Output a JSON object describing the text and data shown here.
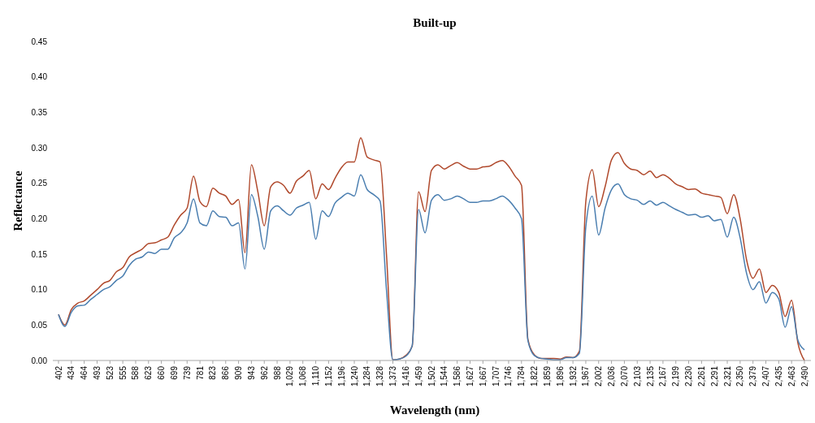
{
  "chart_data": {
    "type": "line",
    "title": "Built-up",
    "xlabel": "Wavelength (nm)",
    "ylabel": "Reflectance",
    "categories": [
      "402",
      null,
      "434",
      null,
      "464",
      null,
      "493",
      null,
      "523",
      null,
      "555",
      null,
      "588",
      null,
      "623",
      null,
      "660",
      null,
      "699",
      null,
      "739",
      null,
      "781",
      null,
      "823",
      null,
      "866",
      null,
      "909",
      null,
      "943",
      null,
      "962",
      null,
      "988",
      null,
      "1,029",
      null,
      "1,068",
      null,
      "1,110",
      null,
      "1,152",
      null,
      "1,196",
      null,
      "1,240",
      null,
      "1,284",
      null,
      "1,328",
      null,
      "1,373",
      null,
      "1,416",
      null,
      "1,459",
      null,
      "1,502",
      null,
      "1,544",
      null,
      "1,586",
      null,
      "1,627",
      null,
      "1,667",
      null,
      "1,707",
      null,
      "1,746",
      null,
      "1,784",
      null,
      "1,822",
      null,
      "1,859",
      null,
      "1,896",
      null,
      "1,932",
      null,
      "1,967",
      null,
      "2,002",
      null,
      "2,036",
      null,
      "2,070",
      null,
      "2,103",
      null,
      "2,135",
      null,
      "2,167",
      null,
      "2,199",
      null,
      "2,230",
      null,
      "2,261",
      null,
      "2,291",
      null,
      "2,321",
      null,
      "2,350",
      null,
      "2,379",
      null,
      "2,407",
      null,
      "2,435",
      null,
      "2,463",
      null,
      "2,490"
    ],
    "series": [
      {
        "color": "#b0492c",
        "values": [
          0.065,
          0.05,
          0.072,
          0.081,
          0.084,
          0.092,
          0.1,
          0.109,
          0.113,
          0.125,
          0.131,
          0.146,
          0.152,
          0.157,
          0.165,
          0.166,
          0.17,
          0.174,
          0.191,
          0.205,
          0.215,
          0.26,
          0.224,
          0.217,
          0.243,
          0.236,
          0.232,
          0.22,
          0.227,
          0.152,
          0.276,
          0.238,
          0.19,
          0.245,
          0.252,
          0.247,
          0.236,
          0.253,
          0.26,
          0.268,
          0.228,
          0.249,
          0.241,
          0.257,
          0.272,
          0.28,
          0.28,
          0.314,
          0.287,
          0.283,
          0.28,
          0.15,
          0.001,
          0.002,
          0.007,
          0.02,
          0.238,
          0.21,
          0.268,
          0.276,
          0.27,
          0.275,
          0.279,
          0.274,
          0.27,
          0.27,
          0.273,
          0.274,
          0.279,
          0.282,
          0.274,
          0.26,
          0.247,
          0.03,
          0.008,
          0.003,
          0.003,
          0.003,
          0.002,
          0.005,
          0.004,
          0.013,
          0.224,
          0.269,
          0.217,
          0.245,
          0.283,
          0.293,
          0.278,
          0.27,
          0.268,
          0.262,
          0.267,
          0.258,
          0.262,
          0.257,
          0.249,
          0.245,
          0.241,
          0.242,
          0.236,
          0.234,
          0.232,
          0.23,
          0.207,
          0.234,
          0.2,
          0.142,
          0.116,
          0.129,
          0.096,
          0.106,
          0.096,
          0.062,
          0.085,
          0.024,
          0.0
        ]
      },
      {
        "color": "#4a7eb0",
        "values": [
          0.065,
          0.048,
          0.068,
          0.077,
          0.078,
          0.086,
          0.093,
          0.1,
          0.104,
          0.113,
          0.119,
          0.134,
          0.143,
          0.146,
          0.153,
          0.151,
          0.157,
          0.157,
          0.173,
          0.18,
          0.194,
          0.228,
          0.194,
          0.19,
          0.211,
          0.203,
          0.202,
          0.19,
          0.194,
          0.129,
          0.234,
          0.203,
          0.157,
          0.211,
          0.218,
          0.211,
          0.205,
          0.215,
          0.219,
          0.223,
          0.171,
          0.211,
          0.203,
          0.222,
          0.23,
          0.236,
          0.232,
          0.262,
          0.241,
          0.234,
          0.225,
          0.1,
          0.001,
          0.002,
          0.006,
          0.021,
          0.213,
          0.18,
          0.226,
          0.234,
          0.226,
          0.228,
          0.232,
          0.228,
          0.223,
          0.223,
          0.225,
          0.225,
          0.228,
          0.232,
          0.226,
          0.215,
          0.2,
          0.028,
          0.007,
          0.003,
          0.002,
          0.001,
          0.001,
          0.004,
          0.004,
          0.01,
          0.188,
          0.232,
          0.177,
          0.215,
          0.241,
          0.249,
          0.234,
          0.228,
          0.226,
          0.22,
          0.225,
          0.219,
          0.223,
          0.218,
          0.213,
          0.209,
          0.205,
          0.206,
          0.202,
          0.204,
          0.197,
          0.199,
          0.174,
          0.202,
          0.173,
          0.123,
          0.1,
          0.111,
          0.081,
          0.096,
          0.087,
          0.047,
          0.076,
          0.028,
          0.015
        ]
      }
    ],
    "ylim": [
      0,
      0.45
    ],
    "yticks": [
      {
        "value": 0,
        "label": "0.00"
      },
      {
        "value": 0.05,
        "label": "0.05"
      },
      {
        "value": 0.1,
        "label": "0.10"
      },
      {
        "value": 0.15,
        "label": "0.15"
      },
      {
        "value": 0.2,
        "label": "0.20"
      },
      {
        "value": 0.25,
        "label": "0.25"
      },
      {
        "value": 0.3,
        "label": "0.30"
      },
      {
        "value": 0.35,
        "label": "0.35"
      },
      {
        "value": 0.4,
        "label": "0.40"
      },
      {
        "value": 0.45,
        "label": "0.45"
      }
    ],
    "grid": false,
    "marker": "none",
    "line_style": "solid"
  }
}
